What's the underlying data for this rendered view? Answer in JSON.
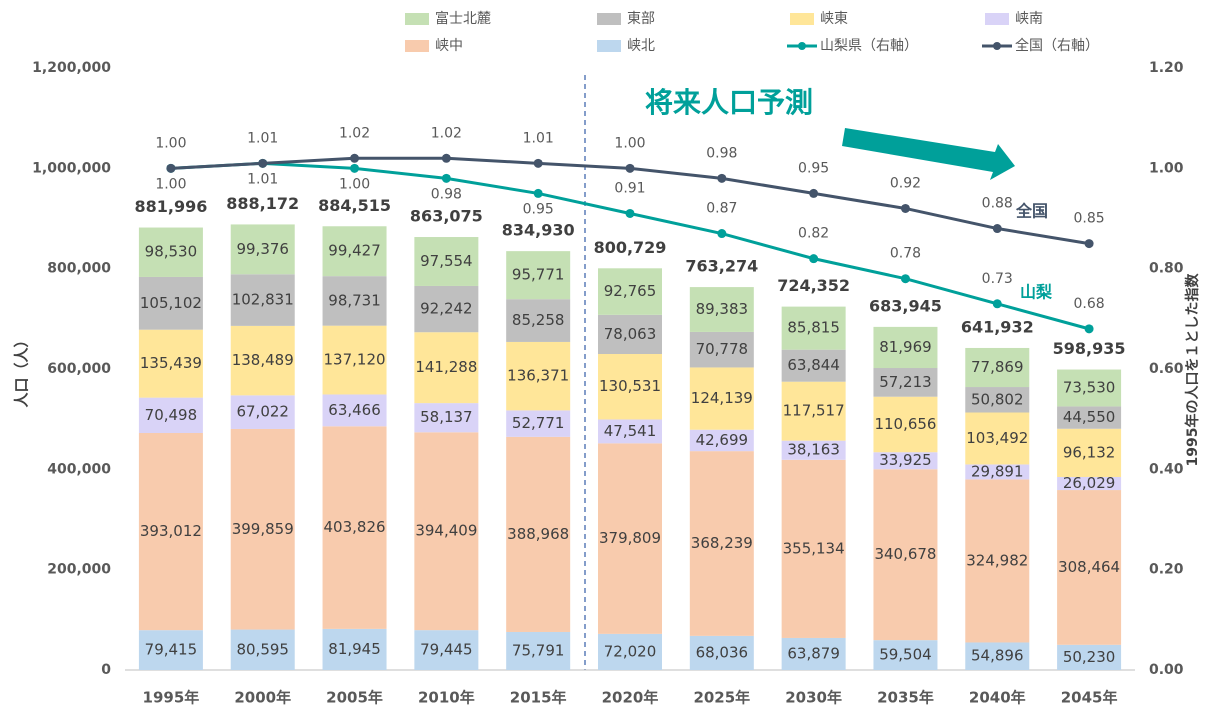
{
  "chart_data": {
    "type": "bar",
    "stacked": true,
    "annotations": [
      "将来人口予測",
      "全国",
      "山梨"
    ],
    "ylabel": "人口（人）",
    "y2label": "1995年の人口を１とした指数",
    "categories": [
      "1995年",
      "2000年",
      "2005年",
      "2010年",
      "2015年",
      "2020年",
      "2025年",
      "2030年",
      "2035年",
      "2040年",
      "2045年"
    ],
    "series": [
      {
        "name": "峡北",
        "color": "#bdd7ee",
        "values": [
          79415,
          80595,
          81945,
          79445,
          75791,
          72020,
          68036,
          63879,
          59504,
          54896,
          50230
        ],
        "value_labels": [
          "79,415",
          "80,595",
          "81,945",
          "79,445",
          "75,791",
          "72,020",
          "68,036",
          "63,879",
          "59,504",
          "54,896",
          "50,230"
        ]
      },
      {
        "name": "峡中",
        "color": "#f8cbad",
        "values": [
          393012,
          399859,
          403826,
          394409,
          388968,
          379809,
          368239,
          355134,
          340678,
          324982,
          308464
        ],
        "value_labels": [
          "393,012",
          "399,859",
          "403,826",
          "394,409",
          "388,968",
          "379,809",
          "368,239",
          "355,134",
          "340,678",
          "324,982",
          "308,464"
        ]
      },
      {
        "name": "峡南",
        "color": "#d9d3f7",
        "values": [
          70498,
          67022,
          63466,
          58137,
          52771,
          47541,
          42699,
          38163,
          33925,
          29891,
          26029
        ],
        "value_labels": [
          "70,498",
          "67,022",
          "63,466",
          "58,137",
          "52,771",
          "47,541",
          "42,699",
          "38,163",
          "33,925",
          "29,891",
          "26,029"
        ]
      },
      {
        "name": "峡東",
        "color": "#ffe699",
        "values": [
          135439,
          138489,
          137120,
          141288,
          136371,
          130531,
          124139,
          117517,
          110656,
          103492,
          96132
        ],
        "value_labels": [
          "135,439",
          "138,489",
          "137,120",
          "141,288",
          "136,371",
          "130,531",
          "124,139",
          "117,517",
          "110,656",
          "103,492",
          "96,132"
        ]
      },
      {
        "name": "東部",
        "color": "#bfbfbf",
        "values": [
          105102,
          102831,
          98731,
          92242,
          85258,
          78063,
          70778,
          63844,
          57213,
          50802,
          44550
        ],
        "value_labels": [
          "105,102",
          "102,831",
          "98,731",
          "92,242",
          "85,258",
          "78,063",
          "70,778",
          "63,844",
          "57,213",
          "50,802",
          "44,550"
        ]
      },
      {
        "name": "富士北麓",
        "color": "#c5e0b4",
        "values": [
          98530,
          99376,
          99427,
          97554,
          95771,
          92765,
          89383,
          85815,
          81969,
          77869,
          73530
        ],
        "value_labels": [
          "98,530",
          "99,376",
          "99,427",
          "97,554",
          "95,771",
          "92,765",
          "89,383",
          "85,815",
          "81,969",
          "77,869",
          "73,530"
        ]
      },
      {
        "name": "山梨県（右軸）",
        "type": "line",
        "axis": "y2",
        "color": "#00a09a",
        "values": [
          1,
          1.01,
          1,
          0.98,
          0.95,
          0.91,
          0.87,
          0.82,
          0.78,
          0.73,
          0.68
        ],
        "value_labels": [
          "1.00",
          "1.01",
          "1.00",
          "0.98",
          "0.95",
          "0.91",
          "0.87",
          "0.82",
          "0.78",
          "0.73",
          "0.68"
        ]
      },
      {
        "name": "全国（右軸）",
        "type": "line",
        "axis": "y2",
        "color": "#44546a",
        "values": [
          1,
          1.01,
          1.02,
          1.02,
          1.01,
          1,
          0.98,
          0.95,
          0.92,
          0.88,
          0.85
        ],
        "value_labels": [
          "1.00",
          "1.01",
          "1.02",
          "1.02",
          "1.01",
          "1.00",
          "0.98",
          "0.95",
          "0.92",
          "0.88",
          "0.85"
        ]
      }
    ],
    "totals": [
      881996,
      888172,
      884515,
      863075,
      834930,
      800729,
      763274,
      724352,
      683945,
      641932,
      598935
    ],
    "total_labels": [
      "881,996",
      "888,172",
      "884,515",
      "863,075",
      "834,930",
      "800,729",
      "763,274",
      "724,352",
      "683,945",
      "641,932",
      "598,935"
    ],
    "ylim": [
      0,
      1200000
    ],
    "yticks": [
      0,
      {
        "value": 200000,
        "label": "200,000"
      },
      {
        "value": 400000,
        "label": "400,000"
      },
      {
        "value": 600000,
        "label": "600,000"
      },
      {
        "value": 800000,
        "label": "800,000"
      },
      {
        "value": 1000000,
        "label": "1,000,000"
      },
      {
        "value": 1200000,
        "label": "1,200,000"
      }
    ],
    "y2lim": [
      0,
      1.2
    ],
    "y2ticks": [
      {
        "value": 0,
        "label": "0.00"
      },
      {
        "value": 0.2,
        "label": "0.20"
      },
      {
        "value": 0.4,
        "label": "0.40"
      },
      {
        "value": 0.6,
        "label": "0.60"
      },
      {
        "value": 0.8,
        "label": "0.80"
      },
      {
        "value": 1,
        "label": "1.00"
      },
      {
        "value": 1.2,
        "label": "1.20"
      }
    ],
    "legend": "top"
  }
}
